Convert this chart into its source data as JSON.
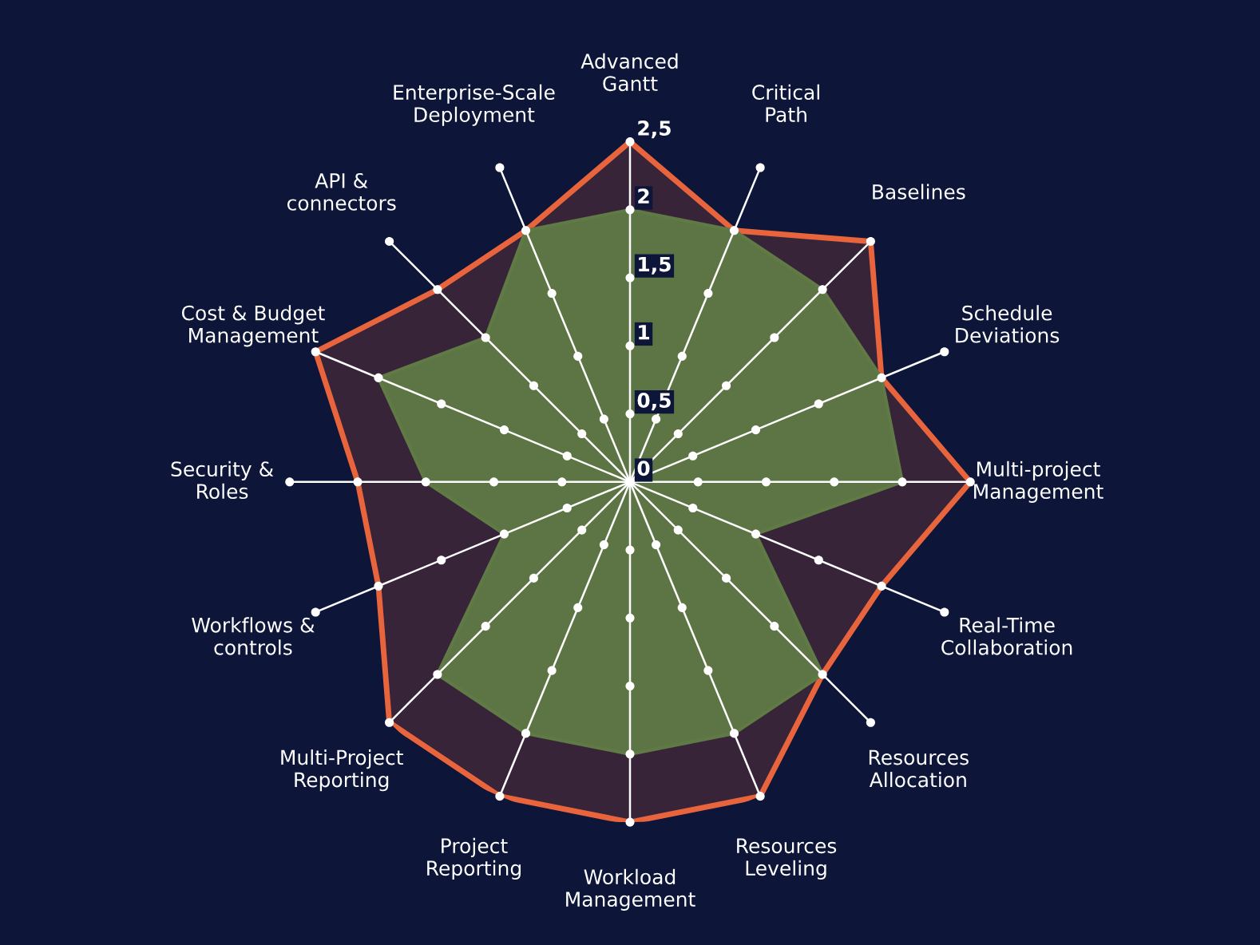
{
  "chart_data": {
    "type": "radar",
    "categories": [
      "Advanced\nGantt",
      "Critical\nPath",
      "Baselines",
      "Schedule\nDeviations",
      "Multi-project\nManagement",
      "Real-Time\nCollaboration",
      "Resources\nAllocation",
      "Resources\nLeveling",
      "Workload\nManagement",
      "Project\nReporting",
      "Multi-Project\nReporting",
      "Workflows &\ncontrols",
      "Security &\nRoles",
      "Cost & Budget\nManagement",
      "API &\nconnectors",
      "Enterprise-Scale\nDeployment"
    ],
    "series": [
      {
        "color": "#e8643c",
        "values": [
          2.5,
          2.0,
          2.5,
          2.0,
          2.5,
          2.0,
          2.0,
          2.5,
          2.5,
          2.5,
          2.5,
          2.0,
          2.0,
          2.5,
          2.0,
          2.0
        ]
      },
      {
        "color": "#5f7a45",
        "values": [
          2.0,
          2.0,
          2.0,
          2.0,
          2.0,
          1.0,
          2.0,
          2.0,
          2.0,
          2.0,
          2.0,
          1.0,
          1.5,
          2.0,
          1.5,
          2.0
        ]
      }
    ],
    "ylim": [
      0,
      2.5
    ],
    "yticks": [
      0,
      {
        "value": 0.5,
        "label": "0,5"
      },
      1,
      {
        "value": 1.5,
        "label": "1,5"
      },
      2,
      {
        "value": 2.5,
        "label": "2,5"
      }
    ],
    "grid": true,
    "legend": false
  }
}
